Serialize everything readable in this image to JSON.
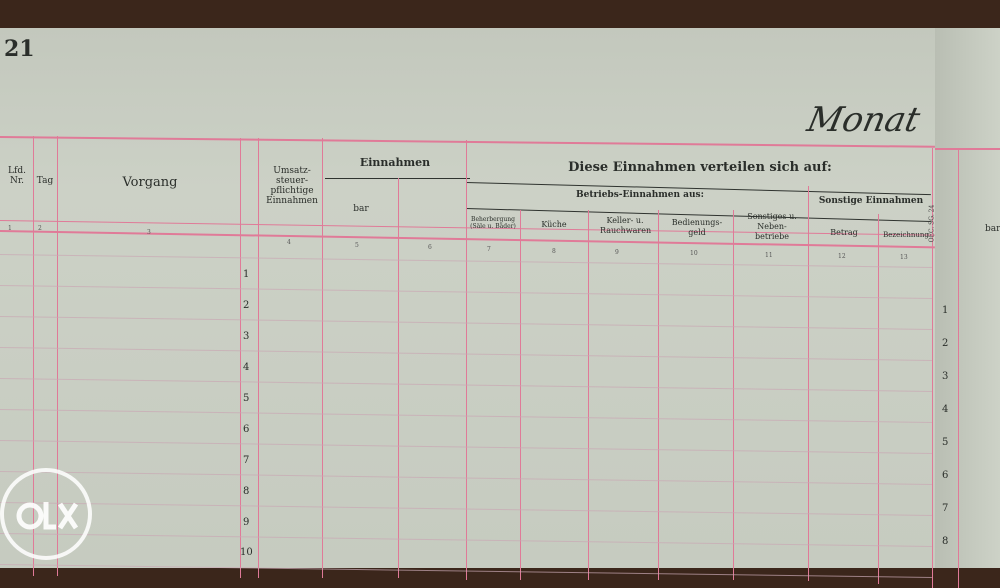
{
  "page_number": "21",
  "month_label": "Monat",
  "headers": {
    "lfd_nr": "Lfd. Nr.",
    "tag": "Tag",
    "vorgang": "Vorgang",
    "umsatz": "Umsatz-steuer-pflichtige Einnahmen",
    "einnahmen": "Einnahmen",
    "bar": "bar",
    "verteilen": "Diese Einnahmen verteilen sich auf:",
    "betriebs": "Betriebs-Einnahmen aus:",
    "beherbergung": "Beherbergung (Säle u. Bäder)",
    "kueche": "Küche",
    "keller": "Keller- u. Rauchwaren",
    "bedienung": "Bedienungs-geld",
    "sonstiges": "Sonstiges u. Neben-betriebe",
    "sonstige_einnahmen": "Sonstige Einnahmen",
    "betrag": "Betrag",
    "bezeichnung": "Bezeichnung",
    "form_code": "OEC. SG. 24",
    "right_bar": "bar"
  },
  "column_numbers": [
    "1",
    "2",
    "3",
    "4",
    "5",
    "6",
    "7",
    "8",
    "9",
    "10",
    "11",
    "12",
    "13"
  ],
  "row_numbers": [
    "1",
    "2",
    "3",
    "4",
    "5",
    "6",
    "7",
    "8",
    "9",
    "10"
  ],
  "right_row_numbers": [
    "1",
    "2",
    "3",
    "4",
    "5",
    "6",
    "7",
    "8"
  ],
  "watermark": "OLX",
  "colors": {
    "rule": "#e07a98",
    "paper": "#c8cdc2",
    "desk": "#3b261b"
  }
}
